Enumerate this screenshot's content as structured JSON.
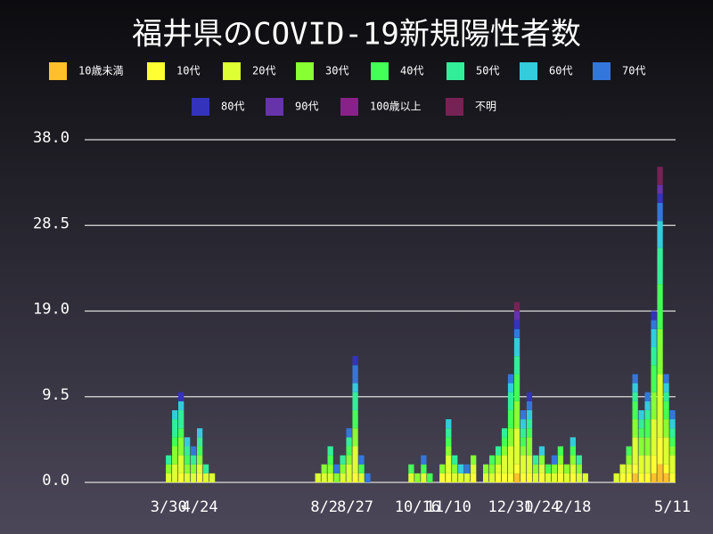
{
  "chart_data": {
    "type": "bar",
    "stacked": true,
    "title": "福井県のCOVID-19新規陽性者数",
    "categories": [
      null,
      null,
      null,
      null,
      null,
      null,
      null,
      null,
      null,
      null,
      null,
      null,
      null,
      "3/30",
      null,
      null,
      null,
      null,
      "4/24",
      null,
      null,
      null,
      null,
      null,
      null,
      null,
      null,
      null,
      null,
      null,
      null,
      null,
      null,
      null,
      null,
      null,
      null,
      null,
      "8/2",
      null,
      null,
      null,
      null,
      "8/27",
      null,
      null,
      null,
      null,
      null,
      null,
      null,
      null,
      null,
      "10/16",
      null,
      null,
      null,
      null,
      "11/10",
      null,
      null,
      null,
      null,
      null,
      null,
      null,
      null,
      null,
      "12/30",
      null,
      null,
      null,
      null,
      "1/24",
      null,
      null,
      null,
      null,
      "2/18",
      null,
      null,
      null,
      null,
      null,
      null,
      null,
      null,
      null,
      null,
      null,
      null,
      null,
      null,
      null,
      "5/11"
    ],
    "series": [
      {
        "name": "10歳未満",
        "color": "#ffc02a",
        "values": [
          0,
          0,
          0,
          0,
          0,
          0,
          0,
          0,
          0,
          0,
          0,
          0,
          0,
          0,
          0,
          0,
          0,
          0,
          0,
          0,
          0,
          0,
          0,
          0,
          0,
          0,
          0,
          0,
          0,
          0,
          0,
          0,
          0,
          0,
          0,
          0,
          0,
          0,
          0,
          0,
          0,
          0,
          0,
          0,
          0,
          0,
          0,
          0,
          0,
          0,
          0,
          0,
          0,
          0,
          0,
          0,
          0,
          0,
          0,
          0,
          0,
          0,
          0,
          0,
          0,
          0,
          0,
          0,
          0,
          1,
          0,
          0,
          0,
          0,
          0,
          0,
          0,
          0,
          0,
          0,
          0,
          0,
          0,
          0,
          0,
          0,
          0,
          0,
          1,
          0,
          0,
          1,
          2,
          1,
          0
        ]
      },
      {
        "name": "10代",
        "color": "#ffff33",
        "values": [
          0,
          0,
          0,
          0,
          0,
          0,
          0,
          0,
          0,
          0,
          0,
          0,
          0,
          0,
          0,
          1,
          0,
          0,
          1,
          0,
          0,
          0,
          0,
          0,
          0,
          0,
          0,
          0,
          0,
          0,
          0,
          0,
          0,
          0,
          0,
          0,
          0,
          0,
          0,
          0,
          0,
          0,
          0,
          1,
          0,
          0,
          0,
          0,
          0,
          0,
          0,
          0,
          0,
          0,
          0,
          0,
          0,
          1,
          1,
          0,
          0,
          0,
          1,
          0,
          0,
          0,
          1,
          1,
          1,
          1,
          1,
          1,
          0,
          1,
          0,
          0,
          1,
          0,
          1,
          0,
          0,
          0,
          0,
          0,
          0,
          0,
          1,
          1,
          1,
          1,
          1,
          2,
          3,
          1,
          1
        ]
      },
      {
        "name": "20代",
        "color": "#ddff33",
        "values": [
          0,
          0,
          0,
          0,
          0,
          0,
          0,
          0,
          0,
          0,
          0,
          0,
          0,
          1,
          2,
          2,
          1,
          1,
          1,
          1,
          1,
          0,
          0,
          0,
          0,
          0,
          0,
          0,
          0,
          0,
          0,
          0,
          0,
          0,
          0,
          0,
          0,
          1,
          1,
          1,
          0,
          1,
          2,
          3,
          1,
          0,
          0,
          0,
          0,
          0,
          0,
          0,
          1,
          0,
          1,
          0,
          0,
          0,
          2,
          1,
          1,
          1,
          1,
          0,
          1,
          1,
          1,
          2,
          3,
          4,
          2,
          2,
          1,
          1,
          1,
          1,
          1,
          1,
          1,
          1,
          1,
          0,
          0,
          0,
          0,
          1,
          1,
          1,
          3,
          2,
          2,
          4,
          7,
          3,
          2
        ]
      },
      {
        "name": "30代",
        "color": "#88ff33",
        "values": [
          0,
          0,
          0,
          0,
          0,
          0,
          0,
          0,
          0,
          0,
          0,
          0,
          0,
          1,
          2,
          2,
          1,
          1,
          1,
          0,
          0,
          0,
          0,
          0,
          0,
          0,
          0,
          0,
          0,
          0,
          0,
          0,
          0,
          0,
          0,
          0,
          0,
          0,
          1,
          1,
          1,
          1,
          1,
          2,
          0,
          0,
          0,
          0,
          0,
          0,
          0,
          0,
          0,
          1,
          0,
          0,
          0,
          1,
          1,
          1,
          0,
          0,
          1,
          0,
          1,
          1,
          1,
          1,
          2,
          3,
          1,
          2,
          1,
          1,
          0,
          1,
          1,
          1,
          1,
          1,
          0,
          0,
          0,
          0,
          0,
          0,
          0,
          1,
          2,
          2,
          2,
          3,
          5,
          2,
          1
        ]
      },
      {
        "name": "40代",
        "color": "#44ff55",
        "values": [
          0,
          0,
          0,
          0,
          0,
          0,
          0,
          0,
          0,
          0,
          0,
          0,
          0,
          0,
          1,
          1,
          1,
          0,
          1,
          0,
          0,
          0,
          0,
          0,
          0,
          0,
          0,
          0,
          0,
          0,
          0,
          0,
          0,
          0,
          0,
          0,
          0,
          0,
          0,
          1,
          0,
          0,
          1,
          2,
          1,
          0,
          0,
          0,
          0,
          0,
          0,
          0,
          1,
          0,
          1,
          1,
          0,
          0,
          1,
          0,
          0,
          0,
          0,
          0,
          0,
          1,
          0,
          1,
          2,
          3,
          1,
          1,
          0,
          0,
          1,
          0,
          1,
          0,
          1,
          0,
          0,
          0,
          0,
          0,
          0,
          0,
          0,
          1,
          2,
          1,
          2,
          3,
          5,
          2,
          1
        ]
      },
      {
        "name": "50代",
        "color": "#33ee99",
        "values": [
          0,
          0,
          0,
          0,
          0,
          0,
          0,
          0,
          0,
          0,
          0,
          0,
          0,
          1,
          2,
          2,
          1,
          1,
          1,
          1,
          0,
          0,
          0,
          0,
          0,
          0,
          0,
          0,
          0,
          0,
          0,
          0,
          0,
          0,
          0,
          0,
          0,
          0,
          0,
          1,
          0,
          1,
          1,
          2,
          0,
          0,
          0,
          0,
          0,
          0,
          0,
          0,
          0,
          0,
          0,
          0,
          0,
          0,
          1,
          1,
          0,
          0,
          0,
          0,
          0,
          0,
          1,
          1,
          2,
          2,
          1,
          1,
          1,
          0,
          0,
          0,
          0,
          0,
          0,
          1,
          0,
          0,
          0,
          0,
          0,
          0,
          0,
          0,
          1,
          1,
          1,
          2,
          4,
          1,
          1
        ]
      },
      {
        "name": "60代",
        "color": "#33ccdd",
        "values": [
          0,
          0,
          0,
          0,
          0,
          0,
          0,
          0,
          0,
          0,
          0,
          0,
          0,
          0,
          1,
          1,
          1,
          0,
          1,
          0,
          0,
          0,
          0,
          0,
          0,
          0,
          0,
          0,
          0,
          0,
          0,
          0,
          0,
          0,
          0,
          0,
          0,
          0,
          0,
          0,
          0,
          0,
          0,
          1,
          0,
          0,
          0,
          0,
          0,
          0,
          0,
          0,
          0,
          0,
          0,
          0,
          0,
          0,
          1,
          0,
          1,
          0,
          0,
          0,
          0,
          0,
          0,
          0,
          1,
          2,
          1,
          1,
          0,
          1,
          0,
          0,
          0,
          0,
          1,
          0,
          0,
          0,
          0,
          0,
          0,
          0,
          0,
          0,
          1,
          1,
          1,
          2,
          3,
          1,
          1
        ]
      },
      {
        "name": "70代",
        "color": "#3377dd",
        "values": [
          0,
          0,
          0,
          0,
          0,
          0,
          0,
          0,
          0,
          0,
          0,
          0,
          0,
          0,
          0,
          0,
          0,
          1,
          0,
          0,
          0,
          0,
          0,
          0,
          0,
          0,
          0,
          0,
          0,
          0,
          0,
          0,
          0,
          0,
          0,
          0,
          0,
          0,
          0,
          0,
          1,
          0,
          1,
          2,
          1,
          1,
          0,
          0,
          0,
          0,
          0,
          0,
          0,
          0,
          1,
          0,
          0,
          0,
          0,
          0,
          0,
          1,
          0,
          0,
          0,
          0,
          0,
          0,
          1,
          1,
          1,
          1,
          0,
          0,
          0,
          1,
          0,
          0,
          0,
          0,
          0,
          0,
          0,
          0,
          0,
          0,
          0,
          0,
          1,
          0,
          1,
          1,
          2,
          1,
          1
        ]
      },
      {
        "name": "80代",
        "color": "#3333bb",
        "values": [
          0,
          0,
          0,
          0,
          0,
          0,
          0,
          0,
          0,
          0,
          0,
          0,
          0,
          0,
          0,
          1,
          0,
          0,
          0,
          0,
          0,
          0,
          0,
          0,
          0,
          0,
          0,
          0,
          0,
          0,
          0,
          0,
          0,
          0,
          0,
          0,
          0,
          0,
          0,
          0,
          0,
          0,
          0,
          1,
          0,
          0,
          0,
          0,
          0,
          0,
          0,
          0,
          0,
          0,
          0,
          0,
          0,
          0,
          0,
          0,
          0,
          0,
          0,
          0,
          0,
          0,
          0,
          0,
          0,
          1,
          0,
          1,
          0,
          0,
          0,
          0,
          0,
          0,
          0,
          0,
          0,
          0,
          0,
          0,
          0,
          0,
          0,
          0,
          0,
          0,
          0,
          1,
          1,
          0,
          0
        ]
      },
      {
        "name": "90代",
        "color": "#6633aa",
        "values": [
          0,
          0,
          0,
          0,
          0,
          0,
          0,
          0,
          0,
          0,
          0,
          0,
          0,
          0,
          0,
          0,
          0,
          0,
          0,
          0,
          0,
          0,
          0,
          0,
          0,
          0,
          0,
          0,
          0,
          0,
          0,
          0,
          0,
          0,
          0,
          0,
          0,
          0,
          0,
          0,
          0,
          0,
          0,
          0,
          0,
          0,
          0,
          0,
          0,
          0,
          0,
          0,
          0,
          0,
          0,
          0,
          0,
          0,
          0,
          0,
          0,
          0,
          0,
          0,
          0,
          0,
          0,
          0,
          0,
          1,
          0,
          0,
          0,
          0,
          0,
          0,
          0,
          0,
          0,
          0,
          0,
          0,
          0,
          0,
          0,
          0,
          0,
          0,
          0,
          0,
          0,
          0,
          1,
          0,
          0
        ]
      },
      {
        "name": "100歳以上",
        "color": "#882288",
        "values": [
          0,
          0,
          0,
          0,
          0,
          0,
          0,
          0,
          0,
          0,
          0,
          0,
          0,
          0,
          0,
          0,
          0,
          0,
          0,
          0,
          0,
          0,
          0,
          0,
          0,
          0,
          0,
          0,
          0,
          0,
          0,
          0,
          0,
          0,
          0,
          0,
          0,
          0,
          0,
          0,
          0,
          0,
          0,
          0,
          0,
          0,
          0,
          0,
          0,
          0,
          0,
          0,
          0,
          0,
          0,
          0,
          0,
          0,
          0,
          0,
          0,
          0,
          0,
          0,
          0,
          0,
          0,
          0,
          0,
          0,
          0,
          0,
          0,
          0,
          0,
          0,
          0,
          0,
          0,
          0,
          0,
          0,
          0,
          0,
          0,
          0,
          0,
          0,
          0,
          0,
          0,
          0,
          0,
          0,
          0
        ]
      },
      {
        "name": "不明",
        "color": "#772255",
        "values": [
          0,
          0,
          0,
          0,
          0,
          0,
          0,
          0,
          0,
          0,
          0,
          0,
          0,
          0,
          0,
          0,
          0,
          0,
          0,
          0,
          0,
          0,
          0,
          0,
          0,
          0,
          0,
          0,
          0,
          0,
          0,
          0,
          0,
          0,
          0,
          0,
          0,
          0,
          0,
          0,
          0,
          0,
          0,
          0,
          0,
          0,
          0,
          0,
          0,
          0,
          0,
          0,
          0,
          0,
          0,
          0,
          0,
          0,
          0,
          0,
          0,
          0,
          0,
          0,
          0,
          0,
          0,
          0,
          0,
          1,
          0,
          0,
          0,
          0,
          0,
          0,
          0,
          0,
          0,
          0,
          0,
          0,
          0,
          0,
          0,
          0,
          0,
          0,
          0,
          0,
          0,
          0,
          2,
          0,
          0
        ]
      }
    ],
    "ylim": [
      0,
      38
    ],
    "yticks": [
      {
        "value": 0,
        "label": "0.0"
      },
      9.5,
      {
        "value": 19,
        "label": "19.0"
      },
      28.5,
      {
        "value": 38,
        "label": "38.0"
      }
    ],
    "grid": true
  }
}
